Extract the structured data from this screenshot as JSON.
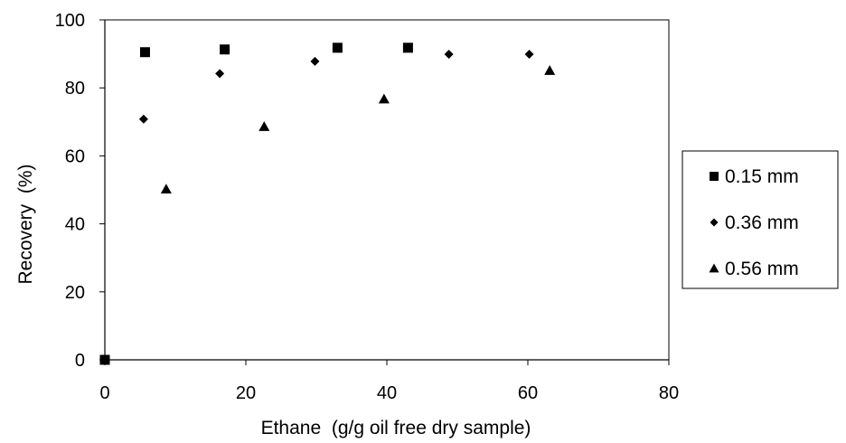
{
  "chart_data": {
    "type": "scatter",
    "title": "",
    "xlabel": "Ethane  (g/g oil free dry sample)",
    "ylabel": "Recovery  (%)",
    "xlim": [
      0,
      80
    ],
    "ylim": [
      0,
      100
    ],
    "xticks": [
      "0",
      "20",
      "40",
      "60",
      "80"
    ],
    "yticks": [
      "0",
      "20",
      "40",
      "60",
      "80",
      "100"
    ],
    "grid": false,
    "legend_position": "right",
    "series": [
      {
        "name": "0.15 mm",
        "marker": "square",
        "color": "#000000",
        "points": [
          {
            "x": 0,
            "y": 0
          },
          {
            "x": 5.7,
            "y": 90.5
          },
          {
            "x": 17,
            "y": 91.3
          },
          {
            "x": 33,
            "y": 91.8
          },
          {
            "x": 43,
            "y": 91.8
          }
        ]
      },
      {
        "name": "0.36 mm",
        "marker": "diamond",
        "color": "#000000",
        "points": [
          {
            "x": 5.5,
            "y": 70.8
          },
          {
            "x": 16.3,
            "y": 84.2
          },
          {
            "x": 29.8,
            "y": 87.8
          },
          {
            "x": 48.8,
            "y": 89.9
          },
          {
            "x": 60.2,
            "y": 89.9
          }
        ]
      },
      {
        "name": "0.56 mm",
        "marker": "triangle",
        "color": "#000000",
        "points": [
          {
            "x": 8.7,
            "y": 50.2
          },
          {
            "x": 22.6,
            "y": 68.6
          },
          {
            "x": 39.6,
            "y": 76.7
          },
          {
            "x": 63.1,
            "y": 85.1
          }
        ]
      }
    ]
  }
}
